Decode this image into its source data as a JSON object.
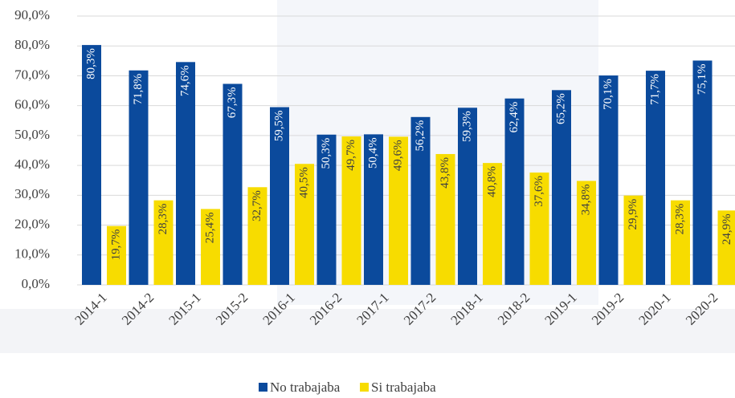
{
  "chart_data": {
    "type": "bar",
    "categories": [
      "2014-1",
      "2014-2",
      "2015-1",
      "2015-2",
      "2016-1",
      "2016-2",
      "2017-1",
      "2017-2",
      "2018-1",
      "2018-2",
      "2019-1",
      "2019-2",
      "2020-1",
      "2020-2"
    ],
    "series": [
      {
        "name": "No trabajaba",
        "color": "#0b4a9c",
        "values": [
          80.3,
          71.8,
          74.6,
          67.3,
          59.5,
          50.3,
          50.4,
          56.2,
          59.3,
          62.4,
          65.2,
          70.1,
          71.7,
          75.1
        ],
        "value_labels": [
          "80,3%",
          "71,8%",
          "74,6%",
          "67,3%",
          "59,5%",
          "50,3%",
          "50,4%",
          "56,2%",
          "59,3%",
          "62,4%",
          "65,2%",
          "70,1%",
          "71,7%",
          "75,1%"
        ]
      },
      {
        "name": "Si trabajaba",
        "color": "#f7dc00",
        "values": [
          19.7,
          28.3,
          25.4,
          32.7,
          40.5,
          49.7,
          49.6,
          43.8,
          40.8,
          37.6,
          34.8,
          29.9,
          28.3,
          24.9
        ],
        "value_labels": [
          "19,7%",
          "28,3%",
          "25,4%",
          "32,7%",
          "40,5%",
          "49,7%",
          "49,6%",
          "43,8%",
          "40,8%",
          "37,6%",
          "34,8%",
          "29,9%",
          "28,3%",
          "24,9%"
        ]
      }
    ],
    "ylim": [
      0,
      90
    ],
    "yticks": [
      {
        "value": 0,
        "label": "0,0%"
      },
      {
        "value": 10,
        "label": "10,0%"
      },
      {
        "value": 20,
        "label": "20,0%"
      },
      {
        "value": 30,
        "label": "30,0%"
      },
      {
        "value": 40,
        "label": "40,0%"
      },
      {
        "value": 50,
        "label": "50,0%"
      },
      {
        "value": 60,
        "label": "60,0%"
      },
      {
        "value": 70,
        "label": "70,0%"
      },
      {
        "value": 80,
        "label": "80,0%"
      },
      {
        "value": 90,
        "label": "90,0%"
      }
    ],
    "grid": true,
    "legend": "bottom"
  }
}
